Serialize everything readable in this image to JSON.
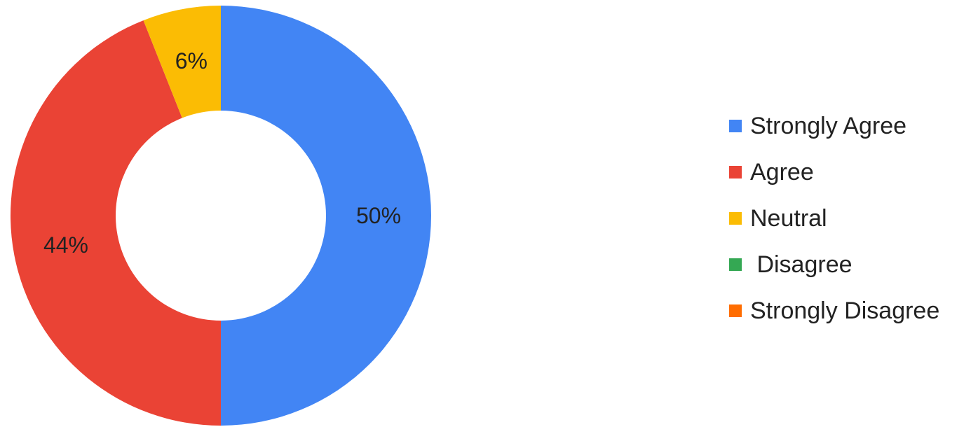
{
  "chart_data": {
    "type": "pie",
    "donut": true,
    "title": "",
    "categories": [
      "Strongly Agree",
      "Agree",
      "Neutral",
      " Disagree",
      "Strongly Disagree"
    ],
    "values": [
      50,
      44,
      6,
      0,
      0
    ],
    "data_labels": [
      "50%",
      "44%",
      "6%",
      "",
      ""
    ],
    "colors": [
      "#4285f4",
      "#ea4335",
      "#fbbc04",
      "#34a853",
      "#ff6d01"
    ],
    "legend_position": "right"
  }
}
